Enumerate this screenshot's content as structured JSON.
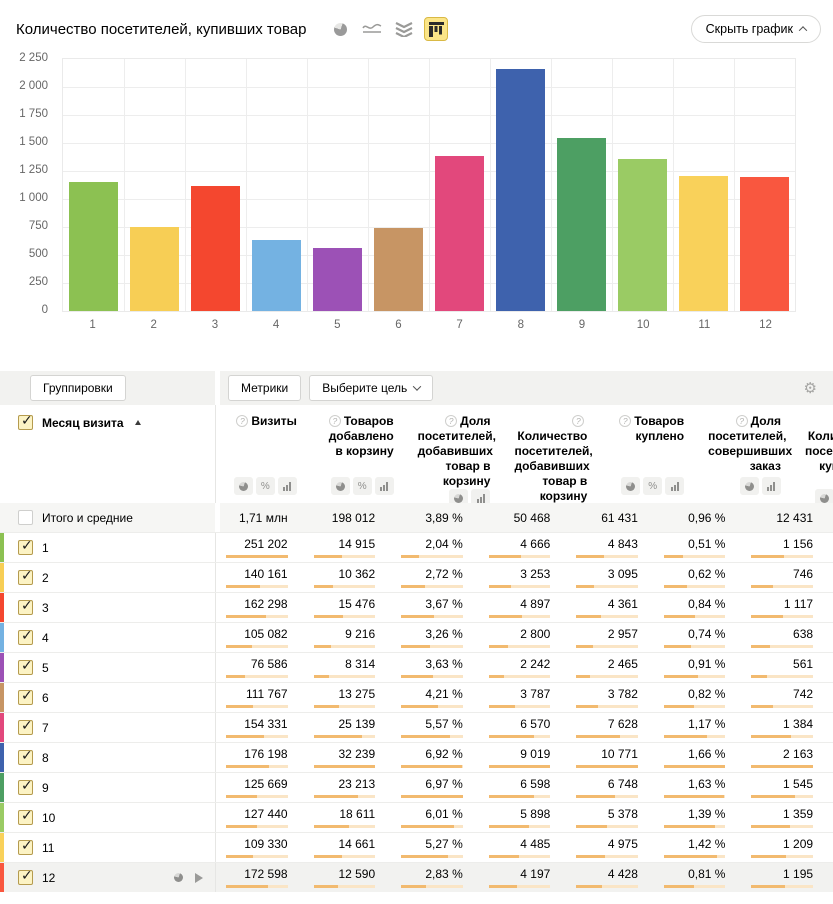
{
  "page": {
    "title": "Количество посетителей, купивших товар",
    "hide_chart_button": "Скрыть график",
    "chart_type_options": [
      "pie-chart",
      "line-chart",
      "stacked-area-chart",
      "bar-chart"
    ],
    "selected_chart_type": "bar-chart"
  },
  "chart_data": {
    "type": "bar",
    "title": "Количество посетителей, купивших товар",
    "categories": [
      "1",
      "2",
      "3",
      "4",
      "5",
      "6",
      "7",
      "8",
      "9",
      "10",
      "11",
      "12"
    ],
    "values": [
      1156,
      746,
      1117,
      638,
      561,
      742,
      1384,
      2163,
      1545,
      1359,
      1209,
      1195
    ],
    "bar_colors": [
      "#8CC152",
      "#F7CE55",
      "#F4472F",
      "#74B2E2",
      "#9C51B6",
      "#C79564",
      "#E2487C",
      "#3E62AD",
      "#4D9F63",
      "#9ACB64",
      "#F9D15A",
      "#F9573F"
    ],
    "xlabel": "",
    "ylabel": "",
    "ylim": [
      0,
      2250
    ],
    "yticks": [
      0,
      250,
      500,
      750,
      1000,
      1250,
      1500,
      1750,
      2000,
      2250
    ],
    "ytick_labels": [
      "0",
      "250",
      "500",
      "750",
      "1 000",
      "1 250",
      "1 500",
      "1 750",
      "2 000",
      "2 250"
    ],
    "grid": true,
    "legend": false
  },
  "toolbar": {
    "groupings_button": "Группировки",
    "metrics_button": "Метрики",
    "goal_select": "Выберите цель"
  },
  "table": {
    "dimension_header": "Месяц визита",
    "sort": "ascending",
    "columns": [
      {
        "label": "Визиты",
        "buttons": [
          "pie",
          "percent",
          "bars"
        ],
        "selected_button": null
      },
      {
        "label": "Товаров добавлено в корзину",
        "buttons": [
          "pie",
          "percent",
          "bars"
        ],
        "selected_button": null
      },
      {
        "label": "Доля посетителей, добавивших товар в корзину",
        "buttons": [
          "pie",
          "bars"
        ],
        "selected_button": null
      },
      {
        "label": "Количество посетителей, добавивших товар в корзину",
        "buttons": [
          "pie",
          "percent",
          "bars"
        ],
        "selected_button": null
      },
      {
        "label": "Товаров куплено",
        "buttons": [
          "pie",
          "percent",
          "bars"
        ],
        "selected_button": null
      },
      {
        "label": "Доля посетителей, совершивших заказ",
        "buttons": [
          "pie",
          "bars"
        ],
        "selected_button": null
      },
      {
        "label": "Количество посетителей, купивших товар",
        "buttons": [
          "pie",
          "percent",
          "bars"
        ],
        "selected_button": "bars"
      }
    ],
    "totals_row": {
      "label": "Итого и средние",
      "checked": false,
      "values": [
        "1,71 млн",
        "198 012",
        "3,89 %",
        "50 468",
        "61 431",
        "0,96 %",
        "12 431"
      ]
    },
    "rows": [
      {
        "label": "1",
        "color": "#8CC152",
        "checked": true,
        "values": [
          "251 202",
          "14 915",
          "2,04 %",
          "4 666",
          "4 843",
          "0,51 %",
          "1 156"
        ]
      },
      {
        "label": "2",
        "color": "#F7CE55",
        "checked": true,
        "values": [
          "140 161",
          "10 362",
          "2,72 %",
          "3 253",
          "3 095",
          "0,62 %",
          "746"
        ]
      },
      {
        "label": "3",
        "color": "#F4472F",
        "checked": true,
        "values": [
          "162 298",
          "15 476",
          "3,67 %",
          "4 897",
          "4 361",
          "0,84 %",
          "1 117"
        ]
      },
      {
        "label": "4",
        "color": "#74B2E2",
        "checked": true,
        "values": [
          "105 082",
          "9 216",
          "3,26 %",
          "2 800",
          "2 957",
          "0,74 %",
          "638"
        ]
      },
      {
        "label": "5",
        "color": "#9C51B6",
        "checked": true,
        "values": [
          "76 586",
          "8 314",
          "3,63 %",
          "2 242",
          "2 465",
          "0,91 %",
          "561"
        ]
      },
      {
        "label": "6",
        "color": "#C79564",
        "checked": true,
        "values": [
          "111 767",
          "13 275",
          "4,21 %",
          "3 787",
          "3 782",
          "0,82 %",
          "742"
        ]
      },
      {
        "label": "7",
        "color": "#E2487C",
        "checked": true,
        "values": [
          "154 331",
          "25 139",
          "5,57 %",
          "6 570",
          "7 628",
          "1,17 %",
          "1 384"
        ]
      },
      {
        "label": "8",
        "color": "#3E62AD",
        "checked": true,
        "values": [
          "176 198",
          "32 239",
          "6,92 %",
          "9 019",
          "10 771",
          "1,66 %",
          "2 163"
        ]
      },
      {
        "label": "9",
        "color": "#4D9F63",
        "checked": true,
        "values": [
          "125 669",
          "23 213",
          "6,97 %",
          "6 598",
          "6 748",
          "1,63 %",
          "1 545"
        ]
      },
      {
        "label": "10",
        "color": "#9ACB64",
        "checked": true,
        "values": [
          "127 440",
          "18 611",
          "6,01 %",
          "5 898",
          "5 378",
          "1,39 %",
          "1 359"
        ]
      },
      {
        "label": "11",
        "color": "#F9D15A",
        "checked": true,
        "values": [
          "109 330",
          "14 661",
          "5,27 %",
          "4 485",
          "4 975",
          "1,42 %",
          "1 209"
        ]
      },
      {
        "label": "12",
        "color": "#F9573F",
        "checked": true,
        "values": [
          "172 598",
          "12 590",
          "2,83 %",
          "4 197",
          "4 428",
          "0,81 %",
          "1 195"
        ]
      }
    ],
    "hovered_row_label": "12"
  },
  "colors": {
    "selected_icon_bg": "#FBE588",
    "selected_icon_border": "#D9B945",
    "minibar_fill": "#F2BA6F",
    "minibar_track": "#FAE5C6",
    "toolbar_bg": "#F2F2F0",
    "totals_bg": "#F6F6F4",
    "hover_row_bg": "#F2F2F0"
  }
}
